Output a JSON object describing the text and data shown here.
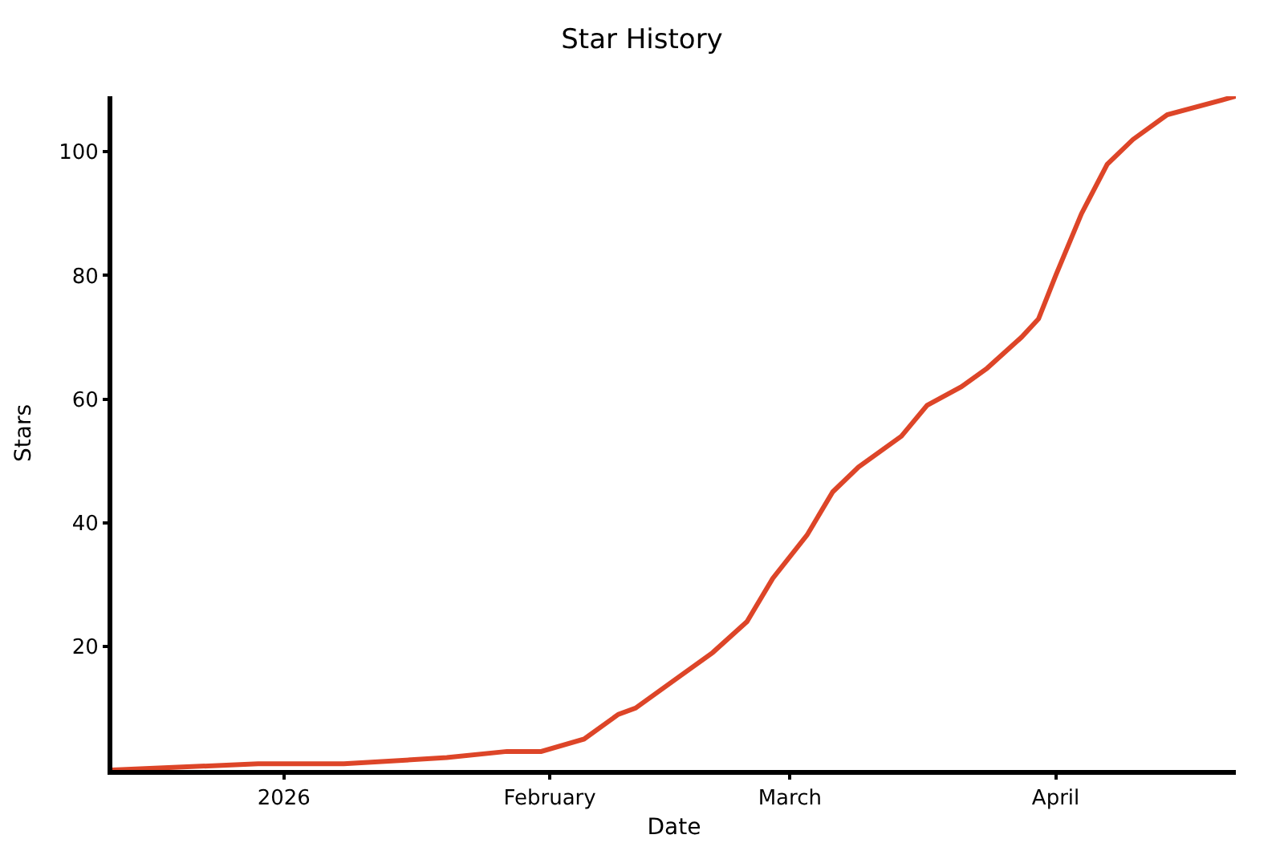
{
  "chart_data": {
    "type": "line",
    "title": "Star History",
    "xlabel": "Date",
    "ylabel": "Stars",
    "x": [
      "2025-12-12",
      "2025-12-29",
      "2026-01-08",
      "2026-01-20",
      "2026-01-27",
      "2026-01-31",
      "2026-02-05",
      "2026-02-09",
      "2026-02-11",
      "2026-02-16",
      "2026-02-20",
      "2026-02-24",
      "2026-02-27",
      "2026-03-03",
      "2026-03-06",
      "2026-03-09",
      "2026-03-14",
      "2026-03-17",
      "2026-03-21",
      "2026-03-24",
      "2026-03-28",
      "2026-03-30",
      "2026-04-01",
      "2026-04-04",
      "2026-04-07",
      "2026-04-10",
      "2026-04-14",
      "2026-04-22"
    ],
    "series": [
      {
        "color": "#dd4528",
        "values": [
          0,
          1,
          1,
          2,
          3,
          3,
          5,
          9,
          10,
          15,
          19,
          24,
          31,
          38,
          45,
          49,
          54,
          59,
          62,
          65,
          70,
          73,
          80,
          90,
          98,
          102,
          106,
          109
        ]
      }
    ],
    "xlim": [
      "2025-12-12",
      "2026-04-22"
    ],
    "xticks": [
      {
        "value": "2026-01-01",
        "label": "2026"
      },
      {
        "value": "2026-02-01",
        "label": "February"
      },
      {
        "value": "2026-03-01",
        "label": "March"
      },
      {
        "value": "2026-04-01",
        "label": "April"
      }
    ],
    "ylim": [
      0,
      109
    ],
    "yticks": [
      20,
      40,
      60,
      80,
      100
    ],
    "line_style": "solid"
  }
}
